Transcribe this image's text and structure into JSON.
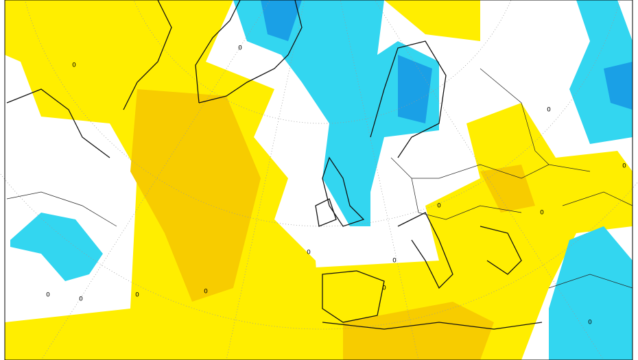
{
  "map": {
    "contour_labels": [
      "0",
      "0",
      "0",
      "0",
      "0",
      "0",
      "0",
      "0",
      "0",
      "0",
      "0",
      "0",
      "0",
      "0"
    ]
  }
}
